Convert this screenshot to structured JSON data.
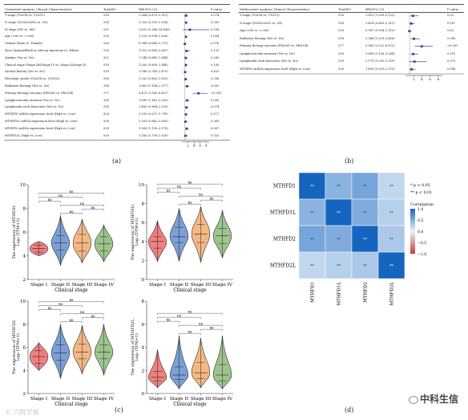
{
  "panel_a": {
    "label": "(a)",
    "col_headers": [
      "Univariate analysis_Clinical Characteristics",
      "Total(N)",
      "HR(95% CI)",
      "P value"
    ],
    "rows": [
      {
        "name": "T stage (T3&T4 vs. T1&T2)",
        "n": "518",
        "hr": "1.364 (0.875–1.913)",
        "p": "0.074",
        "est": 1.364,
        "lo": 0.875,
        "hi": 1.913
      },
      {
        "name": "N stage (N1&N2&N3 vs. N0)",
        "n": "514",
        "hr": "1.320 (0.935–1.924)",
        "p": "0.092",
        "est": 1.32,
        "lo": 0.935,
        "hi": 1.924
      },
      {
        "name": "M stage (M1 vs. M0)",
        "n": "511",
        "hr": "2.621 (0.366–18.838)",
        "p": "0.338",
        "est": 2.621,
        "lo": 0.366,
        "hi": 18.838
      },
      {
        "name": "Age (>60 vs. <=60)",
        "n": "528",
        "hr": "1.320 (0.954–1.826)",
        "p": "0.094",
        "est": 1.32,
        "lo": 0.954,
        "hi": 1.826
      },
      {
        "name": "Gender (Male vs. Female)",
        "n": "528",
        "hr": "0.988 (0.648–1.373)",
        "p": "0.976",
        "est": 0.988,
        "lo": 0.648,
        "hi": 1.373
      },
      {
        "name": "Race (Asian&Black or African American vs. White)",
        "n": "518",
        "hr": "1.552 (0.880–2.687)",
        "p": "0.131",
        "est": 1.552,
        "lo": 0.88,
        "hi": 2.687
      },
      {
        "name": "Smoker (Yes vs. No)",
        "n": "522",
        "hr": "1.248 (0.840–1.844)",
        "p": "0.265",
        "est": 1.248,
        "lo": 0.84,
        "hi": 1.844
      },
      {
        "name": "Clinical stage (Stage III&Stage IV vs. Stage I&Stage II)",
        "n": "518",
        "hr": "1.282 (0.889–1.848)",
        "p": "0.183",
        "est": 1.282,
        "lo": 0.889,
        "hi": 1.848
      },
      {
        "name": "Alcohol history (Yes vs. No)",
        "n": "518",
        "hr": "1.040 (0.740–1.470)",
        "p": "0.825",
        "est": 1.04,
        "lo": 0.74,
        "hi": 1.47
      },
      {
        "name": "Histologic grade (G3&G4 vs. G1&G2)",
        "n": "508",
        "hr": "1.202 (0.862–1.820)",
        "p": "0.258",
        "est": 1.202,
        "lo": 0.862,
        "hi": 1.82
      },
      {
        "name": "Radiation therapy (Yes vs. No)",
        "n": "294",
        "hr": "1.663 (1.164–2.377)",
        "p": "0.005",
        "est": 1.663,
        "lo": 1.164,
        "hi": 2.377
      },
      {
        "name": "Primary therapy outcome (PD&SD vs. PR&CR)",
        "n": "277",
        "hr": "5.472 (3.540–8.457)",
        "p": "<0.001",
        "est": 5.472,
        "lo": 3.54,
        "hi": 8.457
      },
      {
        "name": "Lymphovascular invasion (Yes vs. No)",
        "n": "338",
        "hr": "1.690 (1.143–2.509)",
        "p": "0.009",
        "est": 1.69,
        "lo": 1.143,
        "hi": 2.509
      },
      {
        "name": "Lymphnode neck dissection (Yes vs. No)",
        "n": "518",
        "hr": "1.463 (0.964–2.216)",
        "p": "0.074",
        "est": 1.463,
        "lo": 0.964,
        "hi": 2.216
      },
      {
        "name": "MTHFD1 mRNA expression level (High vs. Low)",
        "n": "528",
        "hr": "1.295 (0.937–1.799)",
        "p": "0.117",
        "est": 1.295,
        "lo": 0.937,
        "hi": 1.799
      },
      {
        "name": "MTHFD1L mRNA expression level (High vs. Low)",
        "n": "528",
        "hr": "1.161 (0.842–1.600)",
        "p": "0.363",
        "est": 1.161,
        "lo": 0.842,
        "hi": 1.6
      },
      {
        "name": "MTHFD2 mRNA expression level (High vs. Low)",
        "n": "528",
        "hr": "1.569 (1.130–2.178)",
        "p": "0.007",
        "est": 1.569,
        "lo": 1.13,
        "hi": 2.178
      },
      {
        "name": "MTHFD2L (High vs. Low)",
        "n": "528",
        "hr": "1.163 (0.799–1.929)",
        "p": "0.353",
        "est": 1.163,
        "lo": 0.799,
        "hi": 1.929
      }
    ],
    "ticks": [
      "2",
      "4",
      "6",
      "8"
    ]
  },
  "panel_b": {
    "label": "(b)",
    "col_headers": [
      "Multivariate analysis_Clinical Characteristics",
      "Total(N)",
      "HR(95% CI)",
      "P value"
    ],
    "rows": [
      {
        "name": "T stage (T3&T4 vs. T1&T2)",
        "n": "518",
        "hr": "1.813 (1.099–3.122)",
        "p": "0.03",
        "est": 1.813,
        "lo": 1.099,
        "hi": 3.122
      },
      {
        "name": "N stage (N1&N2&N3 vs. N0)",
        "n": "514",
        "hr": "1.414 (0.865–2.311)",
        "p": "0.167",
        "est": 1.414,
        "lo": 0.865,
        "hi": 2.311
      },
      {
        "name": "Age (>60 vs. <=60)",
        "n": "528",
        "hr": "0.947 (0.594–1.510)",
        "p": "0.82",
        "est": 0.947,
        "lo": 0.594,
        "hi": 1.51
      },
      {
        "name": "Radiation therapy (Yes vs. No)",
        "n": "294",
        "hr": "2.066 (1.259–3.456)",
        "p": "0.006",
        "est": 2.066,
        "lo": 1.259,
        "hi": 3.456
      },
      {
        "name": "Primary therapy outcome (PD&SD vs. PR&CR)",
        "n": "277",
        "hr": "3.965 (2.252–6.672)",
        "p": "<0.001",
        "est": 3.965,
        "lo": 2.252,
        "hi": 6.672
      },
      {
        "name": "Lymphovascular invasion (Yes vs. No)",
        "n": "338",
        "hr": "1.889 (1.128–3.084)",
        "p": "0.015",
        "est": 1.889,
        "lo": 1.128,
        "hi": 3.084
      },
      {
        "name": "Lymphnode neck dissection (Yes vs. No)",
        "n": "518",
        "hr": "2.179 (0.930–5.109)",
        "p": "0.073",
        "est": 2.179,
        "lo": 0.93,
        "hi": 5.109
      },
      {
        "name": "MTHFD2 mRNA expression level (High vs. Low)",
        "n": "528",
        "hr": "1.499 (0.933–2.375)",
        "p": "0.096",
        "est": 1.499,
        "lo": 0.933,
        "hi": 2.375
      }
    ],
    "ticks": [
      "2",
      "4",
      "6",
      "8"
    ]
  },
  "panel_c": {
    "label": "(c)",
    "xlabel": "Clinical stage",
    "categories": [
      "Stage I",
      "Stage II",
      "Stage III",
      "Stage IV"
    ],
    "sig_labels": [
      "ns",
      "ns",
      "ns",
      "ns",
      "ns",
      "ns"
    ],
    "colors": {
      "stage1": "#f08080",
      "stage2": "#7b9fd6",
      "stage3": "#f4b884",
      "stage4": "#9dc48d"
    },
    "plots": [
      {
        "ylabel_top": "The expression of MTHFD1",
        "ylabel_bottom": "Log₂ (TPM+1)",
        "ylim": [
          2,
          10
        ],
        "yticks": [
          "2",
          "4",
          "6",
          "8",
          "10"
        ],
        "medians": [
          4.6,
          5.1,
          5.1,
          5.0
        ],
        "q1": [
          4.3,
          4.5,
          4.4,
          4.4
        ],
        "q3": [
          4.9,
          5.7,
          5.8,
          5.6
        ],
        "mins": [
          4.0,
          3.2,
          3.4,
          3.5
        ],
        "maxs": [
          5.2,
          7.4,
          7.1,
          6.6
        ]
      },
      {
        "ylabel_top": "The expression of MTHFD1L",
        "ylabel_bottom": "Log₂ (TPM+1)",
        "ylim": [
          0,
          10
        ],
        "yticks": [
          "0",
          "2",
          "4",
          "6",
          "8",
          "10"
        ],
        "medians": [
          4.0,
          4.5,
          4.8,
          4.6
        ],
        "q1": [
          3.3,
          3.9,
          3.9,
          3.8
        ],
        "q3": [
          4.5,
          5.5,
          5.8,
          5.4
        ],
        "mins": [
          1.9,
          1.9,
          1.8,
          2.3
        ],
        "maxs": [
          6.2,
          7.5,
          7.7,
          7.3
        ]
      },
      {
        "ylabel_top": "The expression of MTHFD2",
        "ylabel_bottom": "Log₂ (TPM+1)",
        "ylim": [
          2,
          10
        ],
        "yticks": [
          "2",
          "4",
          "6",
          "8",
          "10"
        ],
        "medians": [
          5.2,
          5.5,
          5.6,
          5.6
        ],
        "q1": [
          4.6,
          4.9,
          5.0,
          5.0
        ],
        "q3": [
          5.7,
          6.2,
          6.3,
          6.2
        ],
        "mins": [
          4.0,
          3.3,
          3.7,
          3.6
        ],
        "maxs": [
          6.4,
          8.0,
          7.9,
          8.0
        ]
      },
      {
        "ylabel_top": "The expression of MTHFD2L",
        "ylabel_bottom": "Log₂ (TPM+1)",
        "ylim": [
          0,
          8
        ],
        "yticks": [
          "0",
          "2",
          "4",
          "6",
          "8"
        ],
        "medians": [
          1.4,
          1.6,
          1.8,
          1.6
        ],
        "q1": [
          1.1,
          1.2,
          1.3,
          1.1
        ],
        "q3": [
          1.9,
          2.3,
          2.7,
          2.5
        ],
        "mins": [
          0.5,
          0.4,
          0.5,
          0.4
        ],
        "maxs": [
          3.8,
          5.0,
          4.8,
          5.0
        ]
      }
    ]
  },
  "panel_d": {
    "label": "(d)",
    "genes": [
      "MTHFD1",
      "MTHFD1L",
      "MTHFD2",
      "MTHFD2L"
    ],
    "matrix": [
      [
        1.0,
        0.45,
        0.55,
        0.2
      ],
      [
        0.45,
        1.0,
        0.5,
        0.25
      ],
      [
        0.55,
        0.5,
        1.0,
        0.3
      ],
      [
        0.2,
        0.25,
        0.3,
        1.0
      ]
    ],
    "cell_label": "**",
    "legend_notes": [
      "* p < 0.05",
      "** p < 0.01"
    ],
    "legend_title": "Correlation",
    "legend_ticks": [
      "1.0",
      "0.5",
      "0.0",
      "−0.5",
      "−1.0"
    ]
  },
  "watermarks": {
    "left": "© 六院学报",
    "right": "中科生信"
  }
}
